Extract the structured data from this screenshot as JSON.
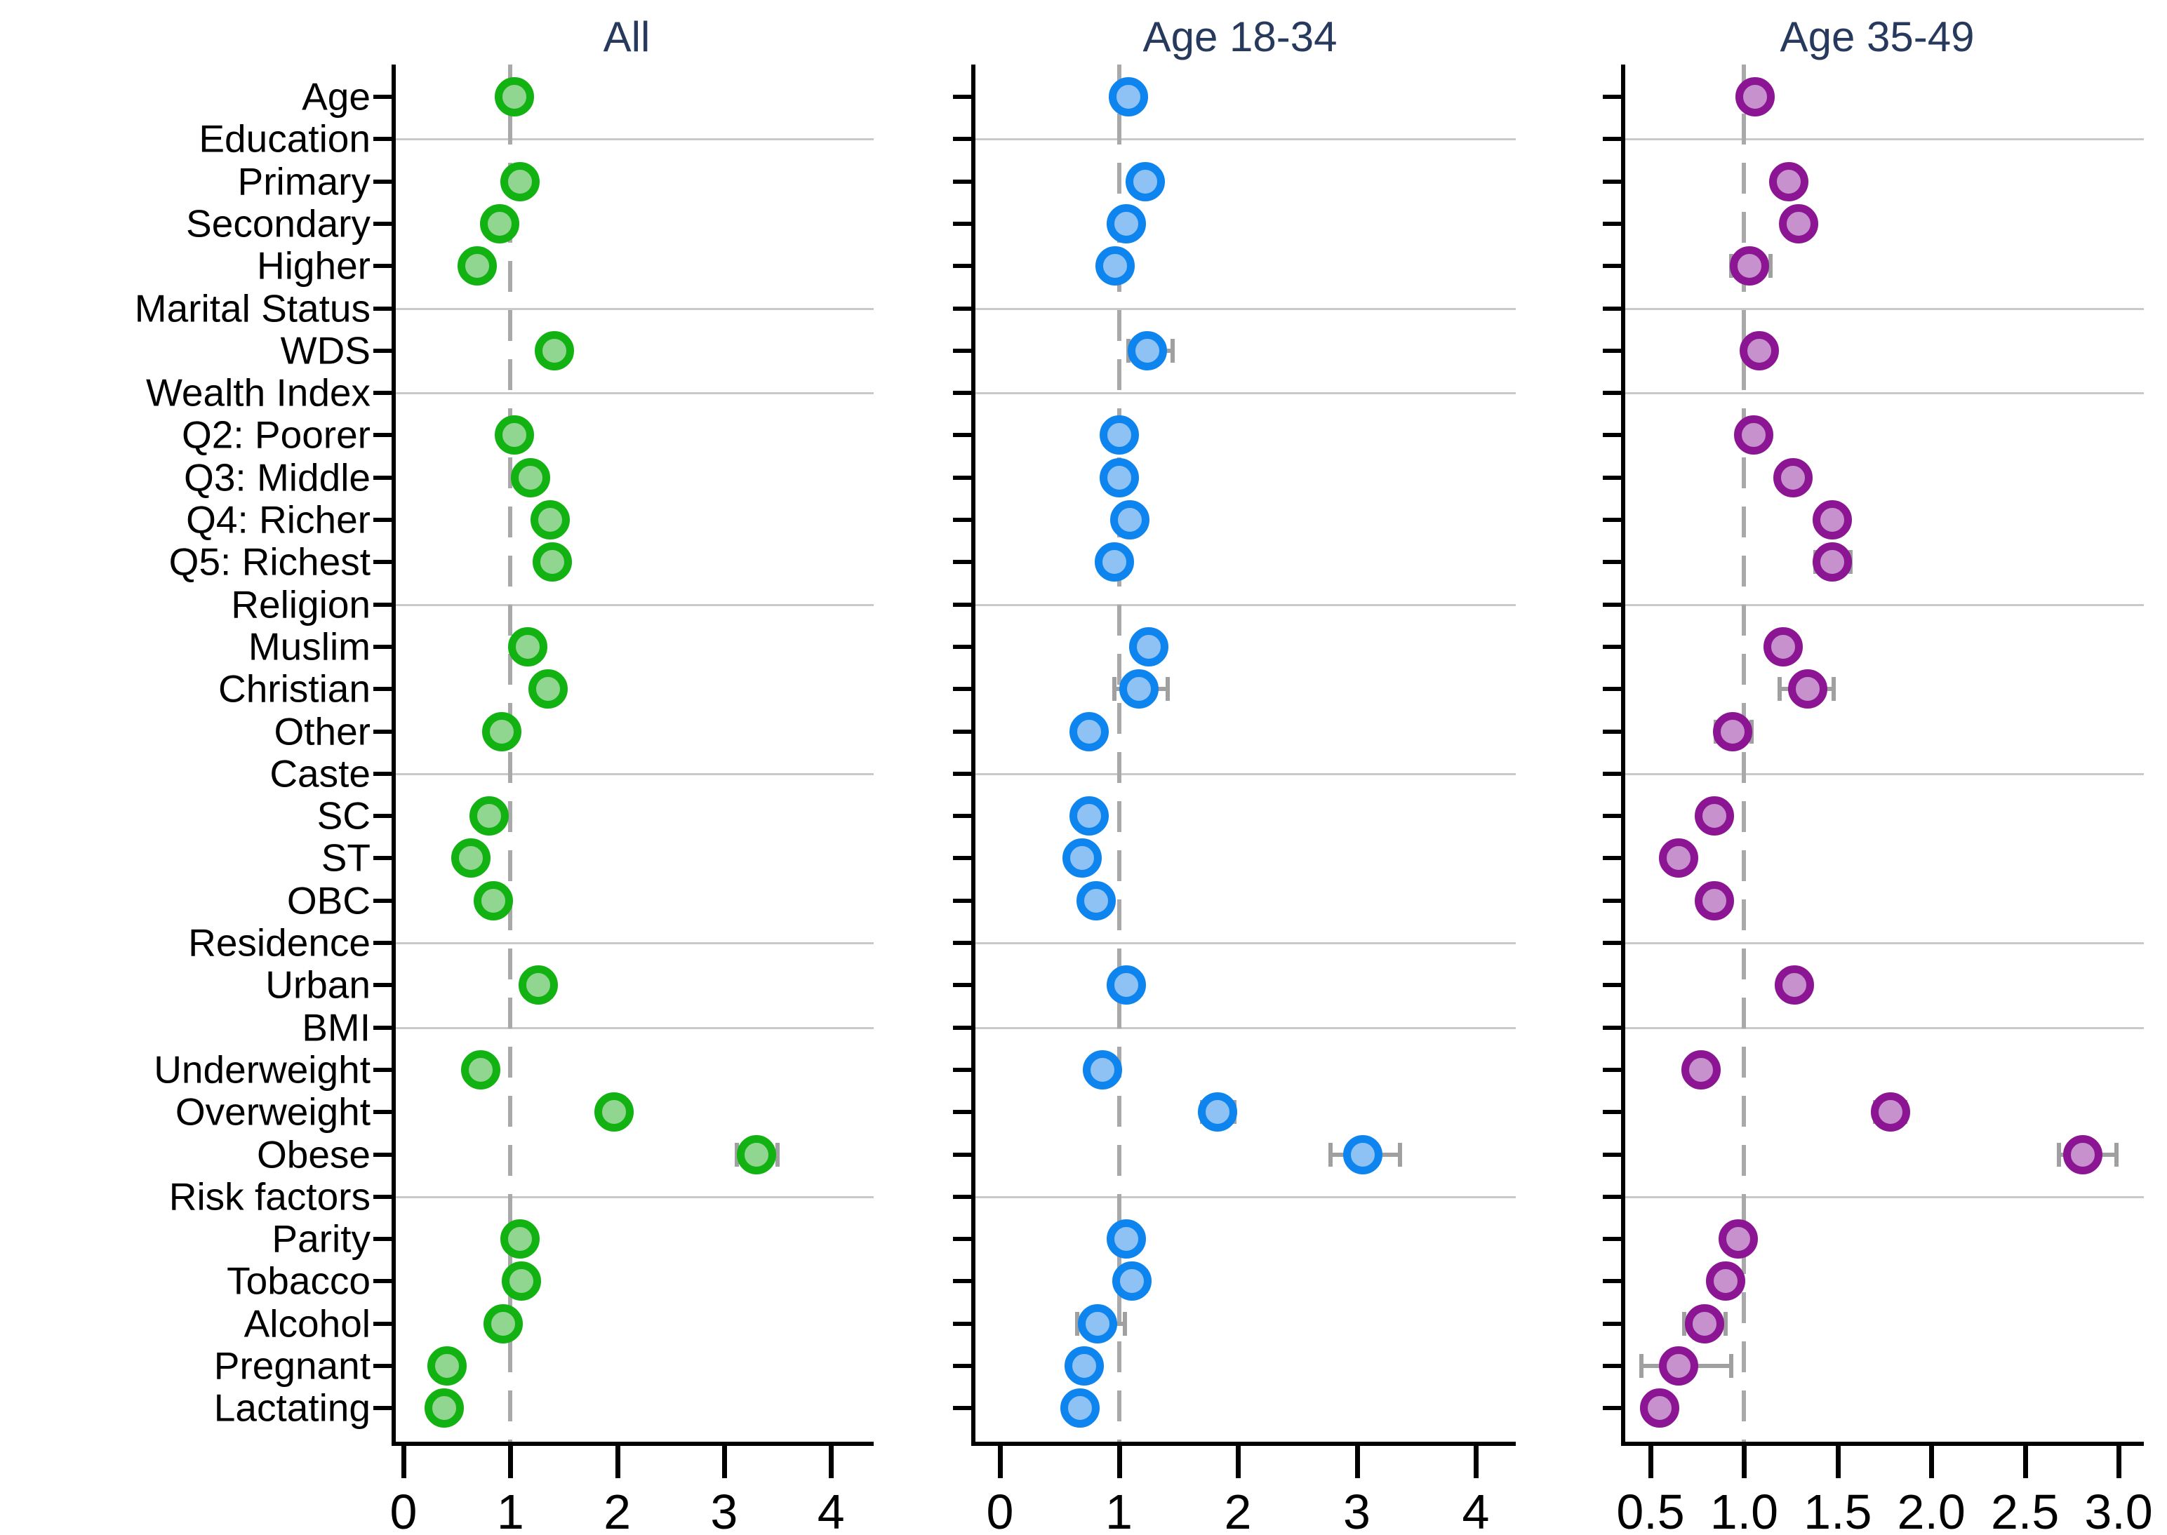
{
  "chart_data": {
    "type": "scatter",
    "subtype": "horizontal-dot-plot-with-reference-line",
    "title": "",
    "xlabel": "",
    "ylabel": "",
    "reference_line_x": 1,
    "grid": "horizontal lines at group-header rows",
    "rows": [
      {
        "label": "Age",
        "header": false
      },
      {
        "label": "Education",
        "header": true
      },
      {
        "label": "Primary",
        "header": false
      },
      {
        "label": "Secondary",
        "header": false
      },
      {
        "label": "Higher",
        "header": false
      },
      {
        "label": "Marital Status",
        "header": true
      },
      {
        "label": "WDS",
        "header": false
      },
      {
        "label": "Wealth Index",
        "header": true
      },
      {
        "label": "Q2: Poorer",
        "header": false
      },
      {
        "label": "Q3: Middle",
        "header": false
      },
      {
        "label": "Q4: Richer",
        "header": false
      },
      {
        "label": "Q5: Richest",
        "header": false
      },
      {
        "label": "Religion",
        "header": true
      },
      {
        "label": "Muslim",
        "header": false
      },
      {
        "label": "Christian",
        "header": false
      },
      {
        "label": "Other",
        "header": false
      },
      {
        "label": "Caste",
        "header": true
      },
      {
        "label": "SC",
        "header": false
      },
      {
        "label": "ST",
        "header": false
      },
      {
        "label": "OBC",
        "header": false
      },
      {
        "label": "Residence",
        "header": true
      },
      {
        "label": "Urban",
        "header": false
      },
      {
        "label": "BMI",
        "header": true
      },
      {
        "label": "Underweight",
        "header": false
      },
      {
        "label": "Overweight",
        "header": false
      },
      {
        "label": "Obese",
        "header": false
      },
      {
        "label": "Risk factors",
        "header": true
      },
      {
        "label": "Parity",
        "header": false
      },
      {
        "label": "Tobacco",
        "header": false
      },
      {
        "label": "Alcohol",
        "header": false
      },
      {
        "label": "Pregnant",
        "header": false
      },
      {
        "label": "Lactating",
        "header": false
      }
    ],
    "panels": [
      {
        "title": "All",
        "marker_stroke": "#12b212",
        "marker_fill": "#90d690",
        "tick_values": [
          0,
          1,
          2,
          3,
          4
        ],
        "tick_labels": [
          "0",
          "1",
          "2",
          "3",
          "4"
        ],
        "xlim": [
          -0.11,
          4.4
        ],
        "values": [
          1.04,
          null,
          1.09,
          0.9,
          0.69,
          null,
          1.41,
          null,
          1.04,
          1.19,
          1.37,
          1.39,
          null,
          1.16,
          1.35,
          0.92,
          null,
          0.8,
          0.63,
          0.84,
          null,
          1.26,
          null,
          0.72,
          1.97,
          3.3,
          null,
          1.09,
          1.1,
          0.93,
          0.41,
          0.38
        ],
        "ci": [
          null,
          null,
          null,
          null,
          null,
          null,
          null,
          null,
          null,
          null,
          null,
          null,
          null,
          null,
          null,
          null,
          null,
          null,
          null,
          null,
          null,
          null,
          null,
          null,
          null,
          [
            3.12,
            3.5
          ],
          null,
          null,
          null,
          null,
          null,
          null
        ]
      },
      {
        "title": "Age 18-34",
        "marker_stroke": "#0e84ee",
        "marker_fill": "#8ec2f4",
        "tick_values": [
          0,
          1,
          2,
          3,
          4
        ],
        "tick_labels": [
          "0",
          "1",
          "2",
          "3",
          "4"
        ],
        "xlim": [
          -0.24,
          4.34
        ],
        "values": [
          1.08,
          null,
          1.22,
          1.06,
          0.97,
          null,
          1.24,
          null,
          1.0,
          1.0,
          1.09,
          0.96,
          null,
          1.25,
          1.17,
          0.75,
          null,
          0.75,
          0.69,
          0.81,
          null,
          1.06,
          null,
          0.86,
          1.83,
          3.05,
          null,
          1.06,
          1.11,
          0.82,
          0.71,
          0.67
        ],
        "ci": [
          null,
          null,
          null,
          null,
          null,
          null,
          [
            1.08,
            1.45
          ],
          null,
          null,
          null,
          null,
          null,
          null,
          null,
          [
            0.96,
            1.41
          ],
          null,
          null,
          null,
          null,
          null,
          null,
          null,
          null,
          null,
          [
            1.7,
            1.97
          ],
          [
            2.78,
            3.36
          ],
          null,
          null,
          [
            1.0,
            1.23
          ],
          [
            0.65,
            1.05
          ],
          null,
          null
        ]
      },
      {
        "title": "Age 35-49",
        "marker_stroke": "#8c1594",
        "marker_fill": "#c791cd",
        "tick_values": [
          0.5,
          1.0,
          1.5,
          2.0,
          2.5,
          3.0
        ],
        "tick_labels": [
          "0.5",
          "1.0",
          "1.5",
          "2.0",
          "2.5",
          "3.0"
        ],
        "xlim": [
          0.34,
          3.14
        ],
        "values": [
          1.06,
          null,
          1.24,
          1.29,
          1.03,
          null,
          1.08,
          null,
          1.05,
          1.26,
          1.47,
          1.47,
          null,
          1.21,
          1.34,
          0.94,
          null,
          0.84,
          0.65,
          0.84,
          null,
          1.27,
          null,
          0.77,
          1.78,
          2.81,
          null,
          0.97,
          0.9,
          0.79,
          0.65,
          0.55
        ],
        "ci": [
          null,
          null,
          null,
          null,
          [
            0.93,
            1.14
          ],
          null,
          null,
          null,
          null,
          null,
          null,
          [
            1.38,
            1.57
          ],
          null,
          null,
          [
            1.19,
            1.48
          ],
          [
            0.85,
            1.04
          ],
          null,
          null,
          null,
          null,
          null,
          null,
          null,
          null,
          [
            1.7,
            1.86
          ],
          [
            2.68,
            2.99
          ],
          null,
          null,
          null,
          [
            0.68,
            0.9
          ],
          [
            0.45,
            0.93
          ],
          [
            0.5,
            0.6
          ]
        ]
      }
    ],
    "colors": {
      "title_text": "#27395d",
      "gridline": "#c9c9c9",
      "reference_dash": "#a9a9a9",
      "error_bar": "#a0a0a0",
      "axis": "#000000"
    }
  }
}
